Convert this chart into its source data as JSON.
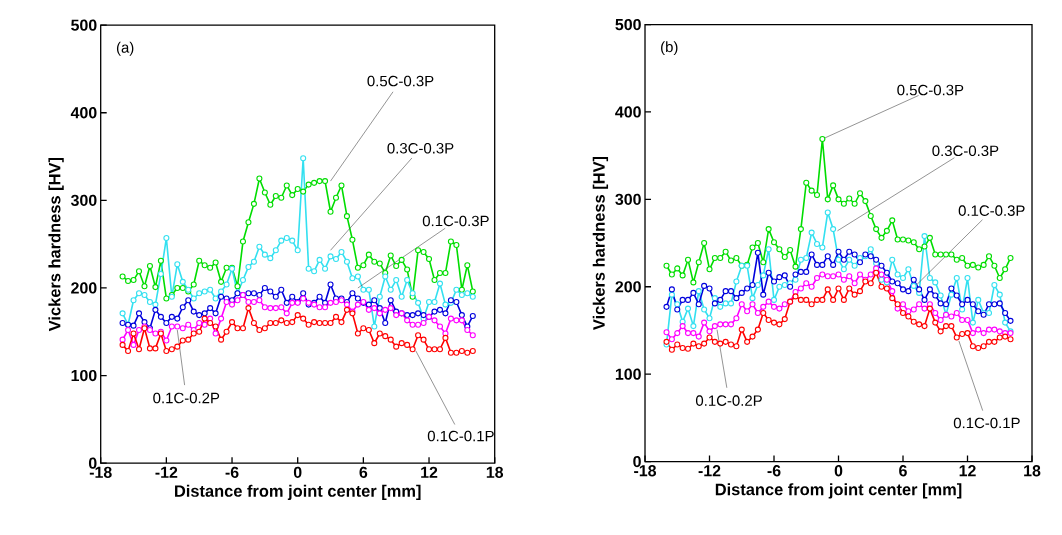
{
  "chart_data": [
    {
      "type": "line",
      "title": "(a)",
      "xlabel": "Distance from joint center [mm]",
      "ylabel": "Vickers hardness [HV]",
      "marker": "circle",
      "line_style": "solid",
      "xlim": [
        -18,
        18
      ],
      "ylim": [
        0,
        500
      ],
      "xticks": [
        -18,
        -12,
        -6,
        0,
        6,
        12,
        18
      ],
      "yticks": [
        0,
        100,
        200,
        300,
        400,
        500
      ],
      "x": [
        -16,
        -15.5,
        -15,
        -14.5,
        -14,
        -13.5,
        -13,
        -12.5,
        -12,
        -11.5,
        -11,
        -10.5,
        -10,
        -9.5,
        -9,
        -8.5,
        -8,
        -7.5,
        -7,
        -6.5,
        -6,
        -5.5,
        -5,
        -4.5,
        -4,
        -3.5,
        -3,
        -2.5,
        -2,
        -1.5,
        -1,
        -0.5,
        0,
        0.5,
        1,
        1.5,
        2,
        2.5,
        3,
        3.5,
        4,
        4.5,
        5,
        5.5,
        6,
        6.5,
        7,
        7.5,
        8,
        8.5,
        9,
        9.5,
        10,
        10.5,
        11,
        11.5,
        12,
        12.5,
        13,
        13.5,
        14,
        14.5,
        15,
        15.5,
        16
      ],
      "series": [
        {
          "color": "#00dd00",
          "values": [
            213,
            208,
            209,
            219,
            202,
            225,
            201,
            231,
            188,
            192,
            200,
            200,
            196,
            204,
            231,
            226,
            223,
            229,
            207,
            223,
            223,
            202,
            253,
            275,
            296,
            325,
            309,
            295,
            305,
            303,
            317,
            306,
            313,
            310,
            318,
            320,
            322,
            322,
            287,
            303,
            317,
            282,
            255,
            223,
            226,
            238,
            230,
            228,
            217,
            237,
            225,
            232,
            221,
            190,
            243,
            241,
            233,
            209,
            217,
            217,
            253,
            249,
            198,
            226,
            196
          ]
        },
        {
          "color": "#33e0f0",
          "values": [
            171,
            158,
            186,
            194,
            192,
            184,
            181,
            216,
            257,
            190,
            227,
            207,
            198,
            188,
            194,
            196,
            198,
            188,
            196,
            204,
            222,
            194,
            209,
            224,
            230,
            247,
            238,
            234,
            243,
            254,
            257,
            254,
            243,
            348,
            222,
            219,
            232,
            222,
            236,
            233,
            241,
            230,
            211,
            213,
            198,
            198,
            156,
            190,
            213,
            198,
            209,
            190,
            209,
            194,
            183,
            165,
            184,
            184,
            205,
            181,
            183,
            198,
            192,
            194,
            190
          ]
        },
        {
          "color": "#0000dd",
          "values": [
            160,
            158,
            157,
            171,
            161,
            154,
            175,
            167,
            160,
            167,
            165,
            178,
            186,
            173,
            169,
            171,
            177,
            171,
            190,
            188,
            186,
            194,
            192,
            194,
            194,
            192,
            200,
            196,
            190,
            198,
            183,
            190,
            184,
            194,
            181,
            183,
            190,
            183,
            204,
            188,
            188,
            184,
            194,
            188,
            183,
            181,
            186,
            177,
            160,
            186,
            173,
            171,
            169,
            169,
            171,
            169,
            167,
            173,
            175,
            171,
            186,
            184,
            169,
            156,
            168
          ]
        },
        {
          "color": "#ff00ff",
          "values": [
            141,
            152,
            135,
            152,
            156,
            152,
            148,
            150,
            140,
            156,
            156,
            154,
            158,
            152,
            160,
            158,
            165,
            148,
            165,
            184,
            181,
            186,
            192,
            184,
            184,
            186,
            178,
            177,
            177,
            178,
            171,
            183,
            183,
            188,
            183,
            181,
            178,
            178,
            183,
            184,
            186,
            181,
            173,
            181,
            184,
            175,
            177,
            171,
            175,
            177,
            169,
            171,
            163,
            158,
            158,
            160,
            167,
            163,
            156,
            148,
            165,
            163,
            163,
            152,
            146
          ]
        },
        {
          "color": "#ff0000",
          "values": [
            135,
            128,
            148,
            130,
            154,
            131,
            131,
            148,
            128,
            130,
            133,
            140,
            141,
            148,
            150,
            165,
            160,
            156,
            141,
            150,
            161,
            154,
            154,
            177,
            160,
            152,
            154,
            160,
            160,
            163,
            160,
            161,
            169,
            165,
            158,
            161,
            160,
            160,
            160,
            167,
            161,
            175,
            171,
            148,
            154,
            152,
            137,
            148,
            145,
            141,
            133,
            137,
            135,
            130,
            146,
            141,
            130,
            130,
            130,
            143,
            126,
            126,
            128,
            126,
            128
          ]
        }
      ],
      "annotations": [
        {
          "text": "0.5C-0.3P",
          "x": 3.0,
          "y": 322
        },
        {
          "text": "0.3C-0.3P",
          "x": 3.0,
          "y": 243
        },
        {
          "text": "0.1C-0.3P",
          "x": 5.5,
          "y": 200
        },
        {
          "text": "0.1C-0.2P",
          "x": -11,
          "y": 152
        },
        {
          "text": "0.1C-0.1P",
          "x": 10.8,
          "y": 128
        }
      ]
    },
    {
      "type": "line",
      "title": "(b)",
      "xlabel": "Distance from joint center [mm]",
      "ylabel": "Vickers hardness [HV]",
      "marker": "circle",
      "line_style": "solid",
      "xlim": [
        -18,
        18
      ],
      "ylim": [
        0,
        500
      ],
      "xticks": [
        -18,
        -12,
        -6,
        0,
        6,
        12,
        18
      ],
      "yticks": [
        0,
        100,
        200,
        300,
        400,
        500
      ],
      "x": [
        -16,
        -15.5,
        -15,
        -14.5,
        -14,
        -13.5,
        -13,
        -12.5,
        -12,
        -11.5,
        -11,
        -10.5,
        -10,
        -9.5,
        -9,
        -8.5,
        -8,
        -7.5,
        -7,
        -6.5,
        -6,
        -5.5,
        -5,
        -4.5,
        -4,
        -3.5,
        -3,
        -2.5,
        -2,
        -1.5,
        -1,
        -0.5,
        0,
        0.5,
        1,
        1.5,
        2,
        2.5,
        3,
        3.5,
        4,
        4.5,
        5,
        5.5,
        6,
        6.5,
        7,
        7.5,
        8,
        8.5,
        9,
        9.5,
        10,
        10.5,
        11,
        11.5,
        12,
        12.5,
        13,
        13.5,
        14,
        14.5,
        15,
        15.5,
        16
      ],
      "series": [
        {
          "color": "#00dd00",
          "values": [
            224,
            214,
            221,
            213,
            231,
            205,
            228,
            250,
            220,
            233,
            233,
            240,
            230,
            233,
            224,
            225,
            245,
            250,
            228,
            266,
            251,
            243,
            234,
            242,
            223,
            266,
            319,
            310,
            305,
            369,
            300,
            316,
            300,
            295,
            301,
            295,
            307,
            298,
            281,
            266,
            256,
            264,
            276,
            254,
            254,
            253,
            251,
            243,
            246,
            256,
            237,
            237,
            237,
            237,
            231,
            233,
            224,
            225,
            222,
            225,
            235,
            224,
            210,
            220,
            233
          ]
        },
        {
          "color": "#33e0f0",
          "values": [
            134,
            191,
            180,
            160,
            175,
            155,
            195,
            174,
            164,
            187,
            177,
            181,
            181,
            206,
            224,
            224,
            187,
            202,
            213,
            243,
            185,
            200,
            202,
            204,
            208,
            231,
            233,
            262,
            249,
            245,
            285,
            266,
            231,
            220,
            231,
            224,
            233,
            235,
            243,
            227,
            208,
            205,
            231,
            214,
            210,
            220,
            201,
            193,
            258,
            210,
            205,
            190,
            168,
            191,
            210,
            174,
            210,
            159,
            185,
            170,
            170,
            202,
            191,
            159,
            149
          ]
        },
        {
          "color": "#0000dd",
          "values": [
            177,
            197,
            174,
            185,
            185,
            193,
            180,
            201,
            198,
            181,
            185,
            195,
            195,
            187,
            193,
            198,
            202,
            239,
            191,
            216,
            206,
            211,
            213,
            200,
            214,
            217,
            217,
            237,
            225,
            225,
            235,
            225,
            240,
            231,
            240,
            237,
            228,
            237,
            235,
            231,
            224,
            216,
            206,
            204,
            197,
            195,
            208,
            197,
            185,
            197,
            190,
            181,
            180,
            198,
            190,
            180,
            185,
            180,
            172,
            168,
            180,
            180,
            181,
            170,
            161
          ]
        },
        {
          "color": "#ff00ff",
          "values": [
            148,
            140,
            147,
            155,
            147,
            147,
            143,
            159,
            149,
            155,
            157,
            157,
            157,
            164,
            180,
            172,
            180,
            170,
            177,
            183,
            177,
            175,
            180,
            183,
            194,
            198,
            204,
            200,
            210,
            214,
            212,
            212,
            214,
            208,
            212,
            204,
            214,
            208,
            214,
            221,
            214,
            208,
            195,
            175,
            180,
            172,
            174,
            180,
            175,
            180,
            170,
            162,
            168,
            166,
            170,
            162,
            162,
            147,
            151,
            147,
            151,
            151,
            149,
            147,
            147
          ]
        },
        {
          "color": "#ff0000",
          "values": [
            137,
            128,
            134,
            130,
            129,
            135,
            132,
            135,
            142,
            137,
            135,
            137,
            134,
            132,
            151,
            137,
            143,
            151,
            170,
            162,
            159,
            157,
            163,
            183,
            189,
            185,
            185,
            180,
            185,
            185,
            197,
            185,
            198,
            185,
            198,
            191,
            195,
            206,
            204,
            216,
            200,
            198,
            187,
            180,
            170,
            166,
            160,
            157,
            155,
            175,
            159,
            149,
            155,
            155,
            142,
            146,
            147,
            132,
            130,
            132,
            137,
            137,
            142,
            143,
            140
          ]
        }
      ],
      "annotations": [
        {
          "text": "0.5C-0.3P",
          "x": -1.5,
          "y": 369
        },
        {
          "text": "0.3C-0.3P",
          "x": -0.1,
          "y": 264
        },
        {
          "text": "0.1C-0.3P",
          "x": 7.0,
          "y": 199
        },
        {
          "text": "0.1C-0.2P",
          "x": -11.3,
          "y": 151
        },
        {
          "text": "0.1C-0.1P",
          "x": 11.2,
          "y": 138
        }
      ]
    }
  ]
}
